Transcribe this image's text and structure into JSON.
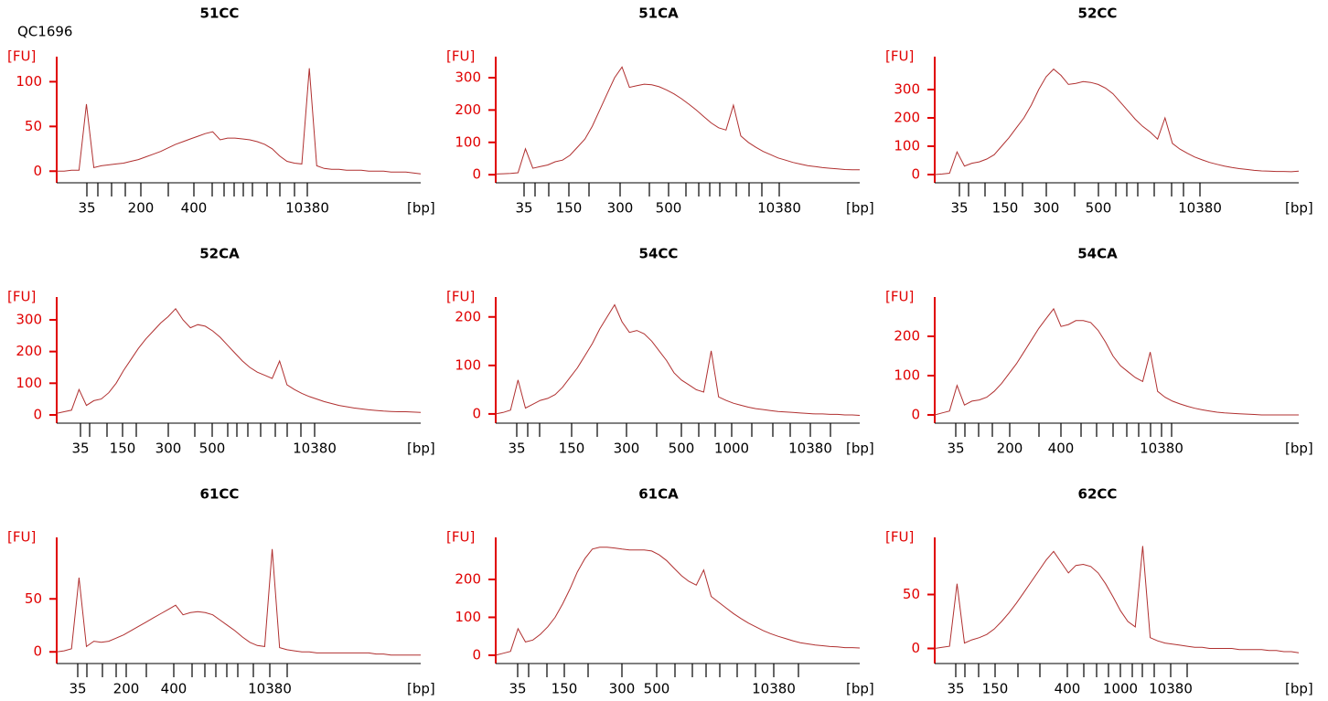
{
  "chart_data": [
    {
      "type": "line",
      "title": "51CC",
      "annotation": "QC1696",
      "ylabel": "[FU]",
      "xlabel": "[bp]",
      "color": "#b03030",
      "ylim": [
        -13,
        128
      ],
      "yticks": [
        0,
        50,
        100
      ],
      "xtick_labels": [
        "35",
        null,
        null,
        null,
        "200",
        null,
        "400",
        null,
        null,
        null,
        null,
        null,
        null,
        null,
        null,
        "10380"
      ],
      "values": [
        0,
        0,
        1,
        1,
        75,
        4,
        6,
        7,
        8,
        9,
        11,
        13,
        16,
        19,
        22,
        26,
        30,
        33,
        36,
        39,
        42,
        44,
        35,
        37,
        37,
        36,
        35,
        33,
        30,
        25,
        17,
        11,
        9,
        8,
        115,
        6,
        3,
        2,
        2,
        1,
        1,
        1,
        0,
        0,
        0,
        -1,
        -1,
        -1,
        -2,
        -3
      ]
    },
    {
      "type": "line",
      "title": "51CA",
      "ylabel": "[FU]",
      "xlabel": "[bp]",
      "color": "#b03030",
      "ylim": [
        -25,
        365
      ],
      "yticks": [
        0,
        100,
        200,
        300
      ],
      "xtick_labels": [
        "35",
        null,
        null,
        "150",
        null,
        "300",
        null,
        "500",
        null,
        null,
        null,
        null,
        null,
        null,
        null,
        "10380"
      ],
      "values": [
        2,
        3,
        4,
        6,
        80,
        20,
        25,
        30,
        40,
        45,
        60,
        85,
        110,
        150,
        200,
        250,
        300,
        333,
        270,
        275,
        280,
        278,
        272,
        262,
        250,
        235,
        218,
        200,
        180,
        160,
        145,
        138,
        215,
        120,
        100,
        85,
        72,
        62,
        52,
        45,
        38,
        33,
        28,
        25,
        22,
        20,
        18,
        16,
        15,
        15
      ]
    },
    {
      "type": "line",
      "title": "52CC",
      "ylabel": "[FU]",
      "xlabel": "[bp]",
      "color": "#b03030",
      "ylim": [
        -29,
        416
      ],
      "yticks": [
        0,
        100,
        200,
        300
      ],
      "xtick_labels": [
        "35",
        null,
        null,
        "150",
        null,
        "300",
        null,
        "500",
        null,
        null,
        null,
        null,
        null,
        null,
        "10380"
      ],
      "values": [
        0,
        2,
        5,
        80,
        30,
        40,
        45,
        55,
        70,
        100,
        130,
        165,
        200,
        245,
        300,
        345,
        372,
        350,
        318,
        322,
        328,
        325,
        318,
        305,
        285,
        255,
        225,
        195,
        170,
        150,
        125,
        200,
        110,
        90,
        75,
        62,
        52,
        43,
        36,
        30,
        25,
        21,
        18,
        15,
        13,
        12,
        11,
        11,
        10,
        12
      ]
    },
    {
      "type": "line",
      "title": "52CA",
      "ylabel": "[FU]",
      "xlabel": "[bp]",
      "color": "#b03030",
      "ylim": [
        -26,
        372
      ],
      "yticks": [
        0,
        100,
        200,
        300
      ],
      "xtick_labels": [
        "35",
        null,
        null,
        "150",
        null,
        "300",
        null,
        "500",
        null,
        null,
        null,
        null,
        null,
        null,
        null,
        "10380"
      ],
      "values": [
        5,
        10,
        15,
        80,
        30,
        45,
        50,
        70,
        100,
        140,
        175,
        210,
        240,
        265,
        290,
        310,
        335,
        300,
        275,
        285,
        280,
        265,
        245,
        220,
        195,
        170,
        150,
        135,
        125,
        115,
        170,
        95,
        80,
        68,
        58,
        50,
        42,
        36,
        30,
        26,
        22,
        19,
        16,
        14,
        12,
        11,
        10,
        10,
        9,
        8
      ]
    },
    {
      "type": "line",
      "title": "54CC",
      "ylabel": "[FU]",
      "xlabel": "[bp]",
      "color": "#b03030",
      "ylim": [
        -19,
        241
      ],
      "yticks": [
        0,
        100,
        200
      ],
      "xtick_labels": [
        "35",
        null,
        null,
        "150",
        null,
        "300",
        null,
        "500",
        null,
        null,
        "1000",
        null,
        null,
        null,
        "10380",
        null
      ],
      "values": [
        0,
        3,
        8,
        70,
        12,
        20,
        28,
        32,
        40,
        55,
        75,
        95,
        120,
        145,
        175,
        200,
        225,
        190,
        168,
        172,
        165,
        150,
        130,
        110,
        85,
        70,
        60,
        50,
        45,
        130,
        35,
        28,
        22,
        18,
        14,
        11,
        9,
        7,
        5,
        4,
        3,
        2,
        1,
        0,
        0,
        -1,
        -1,
        -2,
        -2,
        -3
      ]
    },
    {
      "type": "line",
      "title": "54CA",
      "ylabel": "[FU]",
      "xlabel": "[bp]",
      "color": "#b03030",
      "ylim": [
        -21,
        300
      ],
      "yticks": [
        0,
        100,
        200
      ],
      "xtick_labels": [
        "35",
        null,
        null,
        null,
        "200",
        null,
        "400",
        null,
        null,
        null,
        null,
        null,
        null,
        "10380",
        null
      ],
      "values": [
        0,
        5,
        10,
        75,
        25,
        35,
        38,
        45,
        60,
        80,
        105,
        130,
        160,
        190,
        220,
        245,
        270,
        225,
        230,
        240,
        240,
        235,
        215,
        185,
        150,
        125,
        110,
        95,
        85,
        160,
        60,
        45,
        35,
        28,
        22,
        17,
        13,
        10,
        7,
        5,
        4,
        3,
        2,
        1,
        0,
        0,
        0,
        0,
        0,
        0
      ]
    },
    {
      "type": "line",
      "title": "61CC",
      "ylabel": "[FU]",
      "xlabel": "[bp]",
      "color": "#b03030",
      "ylim": [
        -11,
        108
      ],
      "yticks": [
        0,
        50
      ],
      "xtick_labels": [
        "35",
        null,
        null,
        null,
        "200",
        null,
        "400",
        null,
        null,
        null,
        null,
        null,
        null,
        "10380",
        null
      ],
      "values": [
        0,
        1,
        3,
        70,
        5,
        10,
        9,
        10,
        13,
        16,
        20,
        24,
        28,
        32,
        36,
        40,
        44,
        35,
        37,
        38,
        37,
        35,
        30,
        25,
        20,
        14,
        9,
        6,
        5,
        97,
        4,
        2,
        1,
        0,
        0,
        -1,
        -1,
        -1,
        -1,
        -1,
        -1,
        -1,
        -1,
        -2,
        -2,
        -3,
        -3,
        -3,
        -3,
        -3
      ]
    },
    {
      "type": "line",
      "title": "61CA",
      "ylabel": "[FU]",
      "xlabel": "[bp]",
      "color": "#b03030",
      "ylim": [
        -22,
        311
      ],
      "yticks": [
        0,
        100,
        200
      ],
      "xtick_labels": [
        "35",
        null,
        null,
        "150",
        null,
        "300",
        "500",
        null,
        null,
        null,
        null,
        null,
        null,
        "10380",
        null
      ],
      "values": [
        0,
        5,
        10,
        70,
        35,
        40,
        55,
        75,
        100,
        135,
        175,
        220,
        255,
        280,
        285,
        285,
        283,
        280,
        278,
        278,
        278,
        275,
        265,
        250,
        230,
        210,
        195,
        185,
        225,
        155,
        140,
        125,
        110,
        97,
        85,
        75,
        65,
        57,
        50,
        44,
        38,
        33,
        30,
        27,
        25,
        23,
        22,
        20,
        20,
        19
      ]
    },
    {
      "type": "line",
      "title": "62CC",
      "ylabel": "[FU]",
      "xlabel": "[bp]",
      "color": "#b03030",
      "ylim": [
        -14,
        103
      ],
      "yticks": [
        0,
        50
      ],
      "xtick_labels": [
        "35",
        null,
        null,
        "150",
        null,
        null,
        "400",
        null,
        null,
        null,
        "1000",
        null,
        null,
        null,
        "10380",
        null
      ],
      "values": [
        0,
        1,
        2,
        60,
        5,
        8,
        10,
        13,
        18,
        25,
        33,
        42,
        52,
        62,
        72,
        82,
        90,
        80,
        70,
        77,
        78,
        76,
        70,
        60,
        48,
        35,
        25,
        20,
        95,
        10,
        7,
        5,
        4,
        3,
        2,
        1,
        1,
        0,
        0,
        0,
        0,
        -1,
        -1,
        -1,
        -1,
        -2,
        -2,
        -3,
        -3,
        -4
      ]
    }
  ]
}
